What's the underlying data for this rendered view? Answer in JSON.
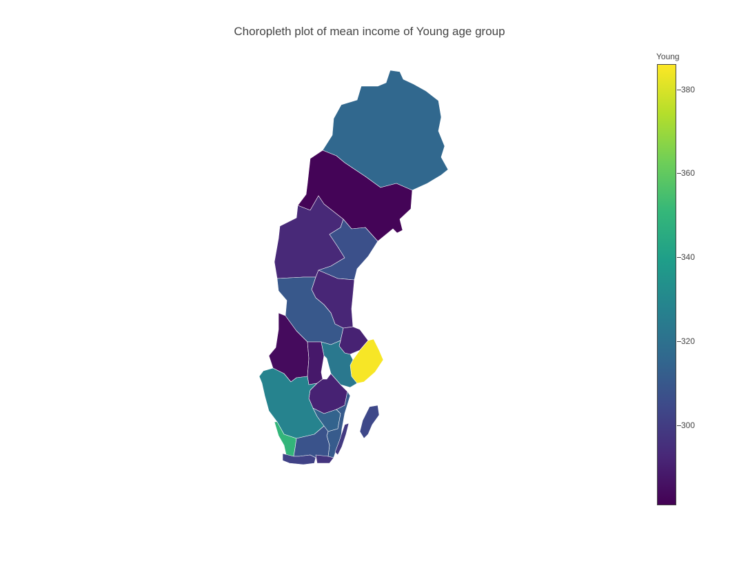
{
  "plot": {
    "title": "Choropleth plot of mean income of Young age group"
  },
  "colorbar": {
    "title": "Young",
    "range": [
      281,
      386
    ],
    "ticks": [
      {
        "value": 380,
        "label": "380"
      },
      {
        "value": 360,
        "label": "360"
      },
      {
        "value": 340,
        "label": "340"
      },
      {
        "value": 320,
        "label": "320"
      },
      {
        "value": 300,
        "label": "300"
      }
    ],
    "colorscale": [
      "#440154",
      "#482878",
      "#3e4989",
      "#31688e",
      "#26828e",
      "#1f9e89",
      "#35b779",
      "#6ece58",
      "#b5de2b",
      "#fde725"
    ]
  },
  "colors": {
    "background": "#ffffff",
    "text": "#444444",
    "region_border": "#ffffff"
  },
  "chart_data": {
    "type": "choropleth",
    "title": "Choropleth plot of mean income of Young age group",
    "colorbar_title": "Young",
    "zrange": [
      281,
      386
    ],
    "regions": [
      {
        "id": "r01",
        "value": 316
      },
      {
        "id": "r02",
        "value": 282
      },
      {
        "id": "r03",
        "value": 293
      },
      {
        "id": "r04",
        "value": 307
      },
      {
        "id": "r05",
        "value": 292
      },
      {
        "id": "r06",
        "value": 310
      },
      {
        "id": "r07",
        "value": 291
      },
      {
        "id": "r08",
        "value": 304
      },
      {
        "id": "r09",
        "value": 297
      },
      {
        "id": "r10",
        "value": 284
      },
      {
        "id": "r11",
        "value": 288
      },
      {
        "id": "r12",
        "value": 323
      },
      {
        "id": "r13",
        "value": 385
      },
      {
        "id": "r14",
        "value": 291
      },
      {
        "id": "r15",
        "value": 328
      },
      {
        "id": "r16",
        "value": 314
      },
      {
        "id": "r17",
        "value": 350
      },
      {
        "id": "r18",
        "value": 308
      },
      {
        "id": "r19",
        "value": 311
      },
      {
        "id": "r20",
        "value": 302
      },
      {
        "id": "r21",
        "value": 299
      }
    ]
  }
}
